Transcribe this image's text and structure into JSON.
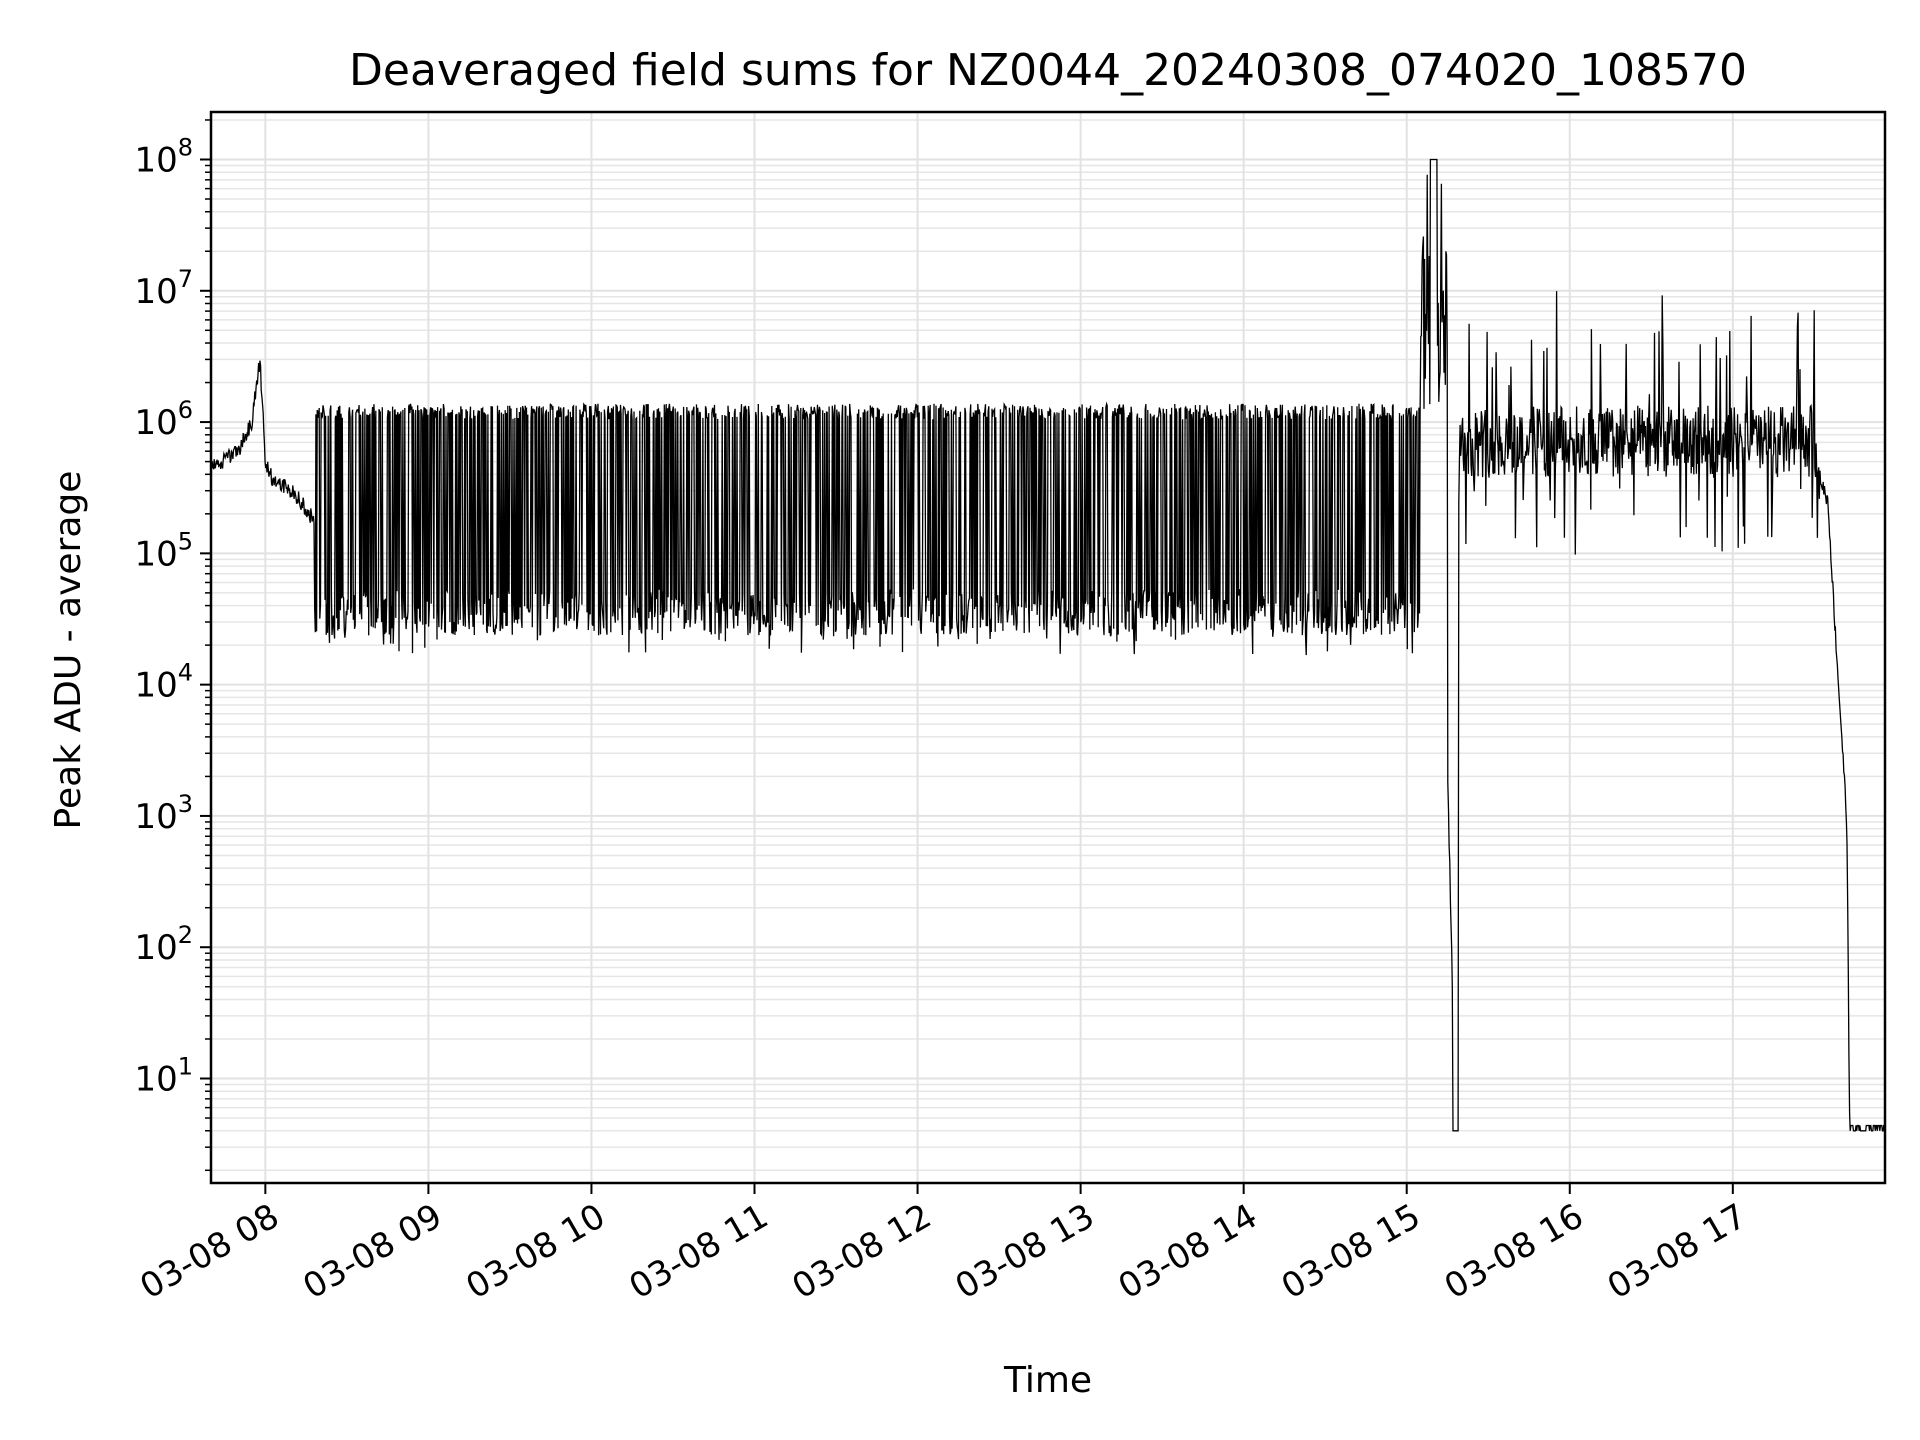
{
  "chart_data": {
    "type": "line",
    "title": "Deaveraged field sums for NZ0044_20240308_074020_108570",
    "xlabel": "Time",
    "ylabel": "Peak ADU - average",
    "xscale": "time",
    "yscale": "log",
    "xlim": [
      "2024-03-08T07:40",
      "2024-03-08T17:56"
    ],
    "ylim": [
      1.6,
      230000000
    ],
    "grid": true,
    "x_tick_labels": [
      {
        "t": "2024-03-08T08:00",
        "label": "03-08 08"
      },
      {
        "t": "2024-03-08T09:00",
        "label": "03-08 09"
      },
      {
        "t": "2024-03-08T10:00",
        "label": "03-08 10"
      },
      {
        "t": "2024-03-08T11:00",
        "label": "03-08 11"
      },
      {
        "t": "2024-03-08T12:00",
        "label": "03-08 12"
      },
      {
        "t": "2024-03-08T13:00",
        "label": "03-08 13"
      },
      {
        "t": "2024-03-08T14:00",
        "label": "03-08 14"
      },
      {
        "t": "2024-03-08T15:00",
        "label": "03-08 15"
      },
      {
        "t": "2024-03-08T16:00",
        "label": "03-08 16"
      },
      {
        "t": "2024-03-08T17:00",
        "label": "03-08 17"
      }
    ],
    "y_tick_labels": [
      {
        "v": 10,
        "base": "10",
        "exp": "1"
      },
      {
        "v": 100,
        "base": "10",
        "exp": "2"
      },
      {
        "v": 1000,
        "base": "10",
        "exp": "3"
      },
      {
        "v": 10000,
        "base": "10",
        "exp": "4"
      },
      {
        "v": 100000,
        "base": "10",
        "exp": "5"
      },
      {
        "v": 1000000,
        "base": "10",
        "exp": "6"
      },
      {
        "v": 10000000,
        "base": "10",
        "exp": "7"
      },
      {
        "v": 100000000,
        "base": "10",
        "exp": "8"
      }
    ],
    "series": [
      {
        "color": "#000000",
        "points": [
          [
            "2024-03-08T07:40",
            450000
          ],
          [
            "2024-03-08T07:45",
            520000
          ],
          [
            "2024-03-08T07:50",
            600000
          ],
          [
            "2024-03-08T07:55",
            1000000
          ],
          [
            "2024-03-08T07:58",
            3000000
          ],
          [
            "2024-03-08T08:00",
            500000
          ],
          [
            "2024-03-08T08:03",
            350000
          ],
          [
            "2024-03-08T08:10",
            300000
          ],
          [
            "2024-03-08T08:15",
            220000
          ],
          [
            "2024-03-08T08:20",
            150000
          ],
          [
            "2024-03-08T08:25",
            90000
          ],
          [
            "2024-03-08T08:30",
            60000
          ],
          [
            "2024-03-08T08:35",
            45000
          ],
          [
            "2024-03-08T08:40",
            40000
          ],
          [
            "2024-03-08T09:00",
            38000
          ],
          [
            "2024-03-08T10:00",
            38000
          ],
          [
            "2024-03-08T11:00",
            40000
          ],
          [
            "2024-03-08T12:00",
            40000
          ],
          [
            "2024-03-08T13:00",
            42000
          ],
          [
            "2024-03-08T14:00",
            42000
          ],
          [
            "2024-03-08T15:00",
            45000
          ],
          [
            "2024-03-08T15:10",
            100000000
          ],
          [
            "2024-03-08T15:18",
            4
          ],
          [
            "2024-03-08T15:20",
            1500000
          ],
          [
            "2024-03-08T15:30",
            900000
          ],
          [
            "2024-03-08T16:00",
            700000
          ],
          [
            "2024-03-08T16:30",
            800000
          ],
          [
            "2024-03-08T17:00",
            650000
          ],
          [
            "2024-03-08T17:30",
            500000
          ],
          [
            "2024-03-08T17:35",
            250000
          ],
          [
            "2024-03-08T17:38",
            20000
          ],
          [
            "2024-03-08T17:41",
            2000
          ],
          [
            "2024-03-08T17:42",
            800
          ],
          [
            "2024-03-08T17:43",
            4
          ],
          [
            "2024-03-08T17:56",
            4
          ]
        ]
      }
    ]
  }
}
